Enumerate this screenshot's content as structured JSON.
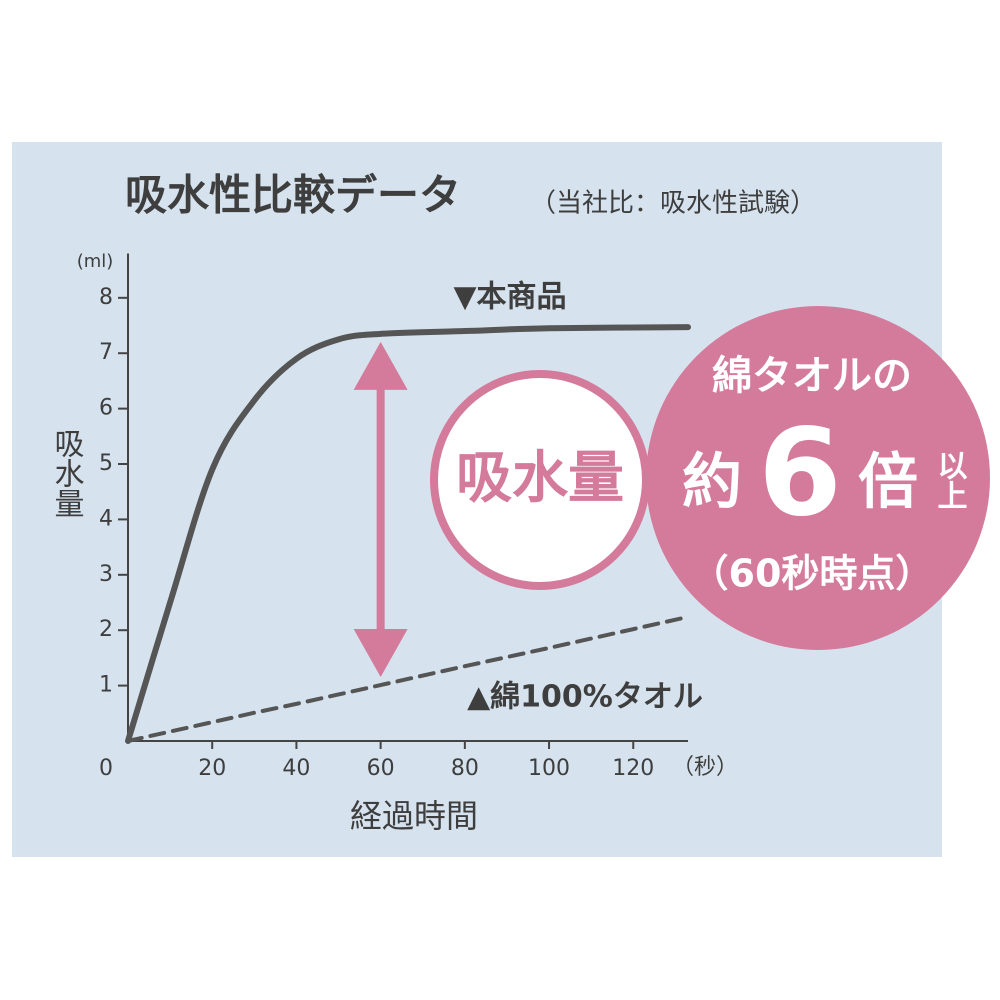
{
  "chart_data": {
    "type": "line",
    "title": "吸水性比較データ",
    "subtitle": "（当社比：吸水性試験）",
    "y_unit": "(ml)",
    "y_label": "吸水量",
    "x_unit": "（秒）",
    "x_label": "経過時間",
    "x": [
      0,
      10,
      20,
      30,
      40,
      50,
      60,
      80,
      100,
      133
    ],
    "series": [
      {
        "name": "▼本商品",
        "color": "#555555",
        "dash": false,
        "values": [
          0,
          2.5,
          4.9,
          6.15,
          6.9,
          7.25,
          7.35,
          7.4,
          7.45,
          7.47
        ]
      },
      {
        "name": "▲綿100%タオル",
        "color": "#555555",
        "dash": true,
        "values": [
          0,
          0.17,
          0.34,
          0.51,
          0.67,
          0.84,
          1.01,
          1.35,
          1.68,
          2.24
        ]
      }
    ],
    "xlim": [
      0,
      133
    ],
    "ylim": [
      0,
      8.8
    ],
    "xticks": [
      0,
      20,
      40,
      60,
      80,
      100,
      120
    ],
    "yticks": [
      1,
      2,
      3,
      4,
      5,
      6,
      7,
      8
    ],
    "highlight_color": "#d47b9b",
    "annotations": {
      "circle_label": "吸水量",
      "line1": "綿タオルの",
      "about": "約",
      "number": "6",
      "times": "倍",
      "more": "以上",
      "note": "（60秒時点）"
    }
  }
}
